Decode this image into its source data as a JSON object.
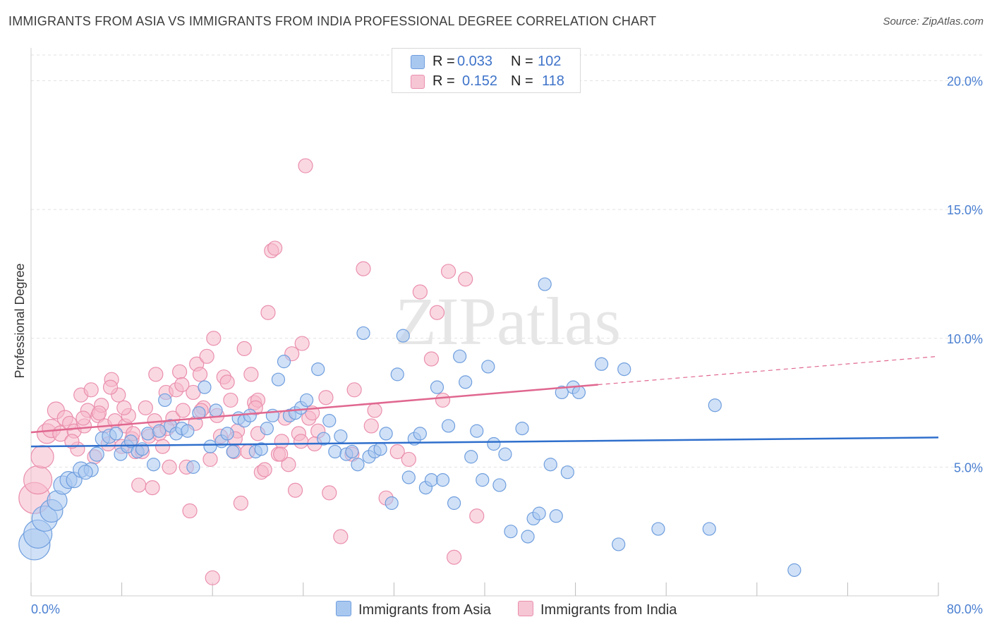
{
  "title": "IMMIGRANTS FROM ASIA VS IMMIGRANTS FROM INDIA PROFESSIONAL DEGREE CORRELATION CHART",
  "source": "Source: ZipAtlas.com",
  "watermark": "ZIPatlas",
  "legend": {
    "rows": [
      {
        "r_label": "R =",
        "r_value": "0.033",
        "n_label": "N =",
        "n_value": "102"
      },
      {
        "r_label": "R =",
        "r_value": "0.152",
        "n_label": "N =",
        "n_value": "118"
      }
    ]
  },
  "bottom_legend": {
    "asia": "Immigrants from Asia",
    "india": "Immigrants from India"
  },
  "colors": {
    "asia_fill": "#a9c8f0",
    "asia_stroke": "#6f9ede",
    "asia_line": "#2f6fcc",
    "india_fill": "#f6b8cb",
    "india_stroke": "#ea8fad",
    "india_line": "#e0678f",
    "tick_text": "#4a7fd1",
    "grid": "#e2e2e2"
  },
  "chart_data": {
    "type": "scatter",
    "title": "IMMIGRANTS FROM ASIA VS IMMIGRANTS FROM INDIA PROFESSIONAL DEGREE CORRELATION CHART",
    "xlabel": "",
    "ylabel": "Professional Degree",
    "xlim": [
      0,
      80
    ],
    "ylim": [
      0,
      21
    ],
    "x_tick_labels": [
      "0.0%",
      "80.0%"
    ],
    "y_ticks": [
      5,
      10,
      15,
      20
    ],
    "y_tick_labels": [
      "5.0%",
      "10.0%",
      "15.0%",
      "20.0%"
    ],
    "grid": true,
    "legend_position": "top-center",
    "series": [
      {
        "name": "Immigrants from Asia",
        "r": 0.033,
        "n": 102,
        "trend": {
          "x": [
            0,
            80
          ],
          "y": [
            5.8,
            6.15
          ]
        },
        "points": [
          [
            0.3,
            2.0
          ],
          [
            0.6,
            2.4
          ],
          [
            1.2,
            3.0
          ],
          [
            1.8,
            3.3
          ],
          [
            2.3,
            3.7
          ],
          [
            2.8,
            4.3
          ],
          [
            3.3,
            4.5
          ],
          [
            3.8,
            4.5
          ],
          [
            4.4,
            4.9
          ],
          [
            5.3,
            4.9
          ],
          [
            4.8,
            4.8
          ],
          [
            5.8,
            5.5
          ],
          [
            6.3,
            6.1
          ],
          [
            6.9,
            6.2
          ],
          [
            7.5,
            6.3
          ],
          [
            7.9,
            5.5
          ],
          [
            8.5,
            5.8
          ],
          [
            8.8,
            6.0
          ],
          [
            9.4,
            5.6
          ],
          [
            9.8,
            5.7
          ],
          [
            10.3,
            6.3
          ],
          [
            10.8,
            5.1
          ],
          [
            11.3,
            6.4
          ],
          [
            11.8,
            7.6
          ],
          [
            12.3,
            6.6
          ],
          [
            12.8,
            6.3
          ],
          [
            13.3,
            6.5
          ],
          [
            13.8,
            6.4
          ],
          [
            14.3,
            5.0
          ],
          [
            14.8,
            7.1
          ],
          [
            15.3,
            8.1
          ],
          [
            15.8,
            5.8
          ],
          [
            16.3,
            7.2
          ],
          [
            16.8,
            6.0
          ],
          [
            17.3,
            6.3
          ],
          [
            17.8,
            5.6
          ],
          [
            18.3,
            6.9
          ],
          [
            18.8,
            6.8
          ],
          [
            19.3,
            7.0
          ],
          [
            19.8,
            5.6
          ],
          [
            20.3,
            5.7
          ],
          [
            20.8,
            6.5
          ],
          [
            21.3,
            7.0
          ],
          [
            21.8,
            8.4
          ],
          [
            22.3,
            9.1
          ],
          [
            22.8,
            7.0
          ],
          [
            23.3,
            7.1
          ],
          [
            23.8,
            7.3
          ],
          [
            24.3,
            7.6
          ],
          [
            25.3,
            8.8
          ],
          [
            25.8,
            6.1
          ],
          [
            26.3,
            6.8
          ],
          [
            26.8,
            5.6
          ],
          [
            27.3,
            6.2
          ],
          [
            27.8,
            5.5
          ],
          [
            28.3,
            5.6
          ],
          [
            28.8,
            5.1
          ],
          [
            29.3,
            10.2
          ],
          [
            29.8,
            5.4
          ],
          [
            30.3,
            5.6
          ],
          [
            30.8,
            5.7
          ],
          [
            31.3,
            6.3
          ],
          [
            31.8,
            3.6
          ],
          [
            32.3,
            8.6
          ],
          [
            32.8,
            10.1
          ],
          [
            33.3,
            4.6
          ],
          [
            33.8,
            6.1
          ],
          [
            34.3,
            6.3
          ],
          [
            34.8,
            4.2
          ],
          [
            35.3,
            4.5
          ],
          [
            35.8,
            8.1
          ],
          [
            36.3,
            4.5
          ],
          [
            36.8,
            6.6
          ],
          [
            37.3,
            3.6
          ],
          [
            37.8,
            9.3
          ],
          [
            38.3,
            8.3
          ],
          [
            38.8,
            5.4
          ],
          [
            39.3,
            6.4
          ],
          [
            39.8,
            4.5
          ],
          [
            40.3,
            8.9
          ],
          [
            40.8,
            5.9
          ],
          [
            41.3,
            4.3
          ],
          [
            41.8,
            5.5
          ],
          [
            42.3,
            2.5
          ],
          [
            43.3,
            6.5
          ],
          [
            43.8,
            2.3
          ],
          [
            44.3,
            3.0
          ],
          [
            44.8,
            3.2
          ],
          [
            45.3,
            12.1
          ],
          [
            45.8,
            5.1
          ],
          [
            46.3,
            3.1
          ],
          [
            46.8,
            7.9
          ],
          [
            47.3,
            4.8
          ],
          [
            47.8,
            8.1
          ],
          [
            48.3,
            7.9
          ],
          [
            50.3,
            9.0
          ],
          [
            51.8,
            2.0
          ],
          [
            52.3,
            8.8
          ],
          [
            55.3,
            2.6
          ],
          [
            59.8,
            2.6
          ],
          [
            60.3,
            7.4
          ],
          [
            67.3,
            1.0
          ]
        ],
        "sizes": [
          22,
          20,
          18,
          16,
          14,
          13,
          12,
          11,
          11,
          10,
          10,
          10,
          10,
          10,
          9,
          9,
          9,
          9,
          9,
          9,
          9,
          9,
          9,
          9,
          9,
          9,
          9,
          9,
          9,
          9,
          9,
          9,
          9,
          9,
          9,
          9,
          9,
          9,
          9,
          9,
          9,
          9,
          9,
          9,
          9,
          9,
          9,
          9,
          9,
          9,
          9,
          9,
          9,
          9,
          9,
          9,
          9,
          9,
          9,
          9,
          9,
          9,
          9,
          9,
          9,
          9,
          9,
          9,
          9,
          9,
          9,
          9,
          9,
          9,
          9,
          9,
          9,
          9,
          9,
          9,
          9,
          9,
          9,
          9,
          9,
          9,
          9,
          9,
          9,
          9,
          9,
          9,
          9,
          9,
          9,
          9,
          9,
          9
        ]
      },
      {
        "name": "Immigrants from India",
        "r": 0.152,
        "n": 118,
        "trend": {
          "x": [
            0,
            50
          ],
          "y": [
            6.35,
            8.2
          ],
          "dashed_to": {
            "x": 80,
            "y": 9.3
          }
        },
        "points": [
          [
            0.3,
            3.8
          ],
          [
            0.6,
            4.5
          ],
          [
            1.0,
            5.4
          ],
          [
            1.4,
            6.3
          ],
          [
            1.8,
            6.5
          ],
          [
            2.2,
            7.2
          ],
          [
            2.6,
            6.3
          ],
          [
            3.0,
            6.9
          ],
          [
            3.4,
            6.7
          ],
          [
            3.8,
            6.4
          ],
          [
            4.1,
            5.7
          ],
          [
            4.4,
            7.8
          ],
          [
            4.7,
            6.6
          ],
          [
            5.0,
            7.2
          ],
          [
            5.3,
            8.0
          ],
          [
            5.6,
            5.4
          ],
          [
            5.9,
            7.0
          ],
          [
            6.2,
            7.4
          ],
          [
            6.5,
            6.6
          ],
          [
            6.8,
            5.9
          ],
          [
            7.1,
            8.4
          ],
          [
            7.4,
            6.8
          ],
          [
            7.7,
            7.8
          ],
          [
            8.0,
            5.8
          ],
          [
            8.3,
            6.6
          ],
          [
            8.6,
            7.0
          ],
          [
            8.9,
            6.1
          ],
          [
            9.2,
            5.6
          ],
          [
            9.5,
            4.3
          ],
          [
            9.8,
            5.6
          ],
          [
            10.1,
            7.3
          ],
          [
            10.4,
            6.2
          ],
          [
            10.7,
            4.2
          ],
          [
            11.0,
            8.6
          ],
          [
            11.3,
            6.3
          ],
          [
            11.6,
            5.8
          ],
          [
            11.9,
            7.9
          ],
          [
            12.2,
            5.0
          ],
          [
            12.5,
            6.9
          ],
          [
            12.8,
            8.0
          ],
          [
            13.1,
            8.7
          ],
          [
            13.4,
            7.2
          ],
          [
            13.7,
            5.0
          ],
          [
            14.0,
            3.3
          ],
          [
            14.3,
            7.9
          ],
          [
            14.6,
            9.0
          ],
          [
            14.9,
            8.6
          ],
          [
            15.2,
            7.3
          ],
          [
            15.5,
            9.3
          ],
          [
            15.8,
            5.3
          ],
          [
            16.1,
            10.0
          ],
          [
            16.4,
            7.0
          ],
          [
            16.7,
            6.2
          ],
          [
            17.0,
            8.5
          ],
          [
            17.3,
            8.3
          ],
          [
            17.6,
            7.6
          ],
          [
            17.9,
            5.6
          ],
          [
            18.2,
            6.4
          ],
          [
            18.5,
            3.6
          ],
          [
            18.8,
            9.6
          ],
          [
            19.1,
            5.6
          ],
          [
            19.4,
            8.6
          ],
          [
            19.7,
            7.5
          ],
          [
            20.0,
            6.3
          ],
          [
            20.3,
            4.8
          ],
          [
            20.6,
            4.9
          ],
          [
            20.9,
            11.0
          ],
          [
            21.2,
            13.4
          ],
          [
            21.5,
            13.5
          ],
          [
            21.8,
            5.5
          ],
          [
            22.1,
            6.0
          ],
          [
            22.4,
            6.9
          ],
          [
            22.7,
            5.1
          ],
          [
            23.0,
            9.4
          ],
          [
            23.3,
            4.1
          ],
          [
            23.6,
            6.3
          ],
          [
            23.9,
            9.8
          ],
          [
            24.2,
            16.7
          ],
          [
            24.5,
            6.9
          ],
          [
            24.8,
            7.1
          ],
          [
            25.3,
            6.4
          ],
          [
            26.3,
            4.0
          ],
          [
            27.3,
            2.3
          ],
          [
            28.3,
            5.5
          ],
          [
            29.3,
            12.7
          ],
          [
            30.3,
            7.2
          ],
          [
            31.3,
            3.8
          ],
          [
            32.3,
            5.6
          ],
          [
            33.3,
            5.3
          ],
          [
            34.3,
            11.8
          ],
          [
            35.3,
            9.2
          ],
          [
            35.8,
            11.0
          ],
          [
            36.3,
            7.6
          ],
          [
            36.8,
            12.6
          ],
          [
            37.3,
            1.5
          ],
          [
            38.3,
            12.3
          ],
          [
            39.3,
            3.1
          ],
          [
            13.3,
            8.2
          ],
          [
            9.0,
            6.3
          ],
          [
            12.0,
            6.5
          ],
          [
            15.0,
            7.2
          ],
          [
            18.0,
            6.1
          ],
          [
            20.0,
            7.6
          ],
          [
            22.0,
            5.5
          ],
          [
            25.0,
            5.9
          ],
          [
            30.0,
            6.6
          ],
          [
            16.0,
            0.7
          ],
          [
            6.0,
            7.1
          ],
          [
            7.0,
            8.1
          ],
          [
            8.2,
            7.3
          ],
          [
            3.6,
            6.0
          ],
          [
            4.6,
            6.9
          ],
          [
            10.9,
            6.8
          ],
          [
            14.5,
            6.7
          ],
          [
            19.8,
            7.3
          ],
          [
            23.8,
            6.0
          ],
          [
            26.0,
            7.7
          ],
          [
            28.5,
            8.0
          ]
        ],
        "sizes": [
          22,
          20,
          16,
          14,
          13,
          12,
          11,
          11,
          10,
          10,
          10,
          10,
          10,
          10,
          10,
          10,
          10,
          10,
          10,
          10,
          10,
          10,
          10,
          10,
          10,
          10,
          10,
          10,
          10,
          10,
          10,
          10,
          10,
          10,
          10,
          10,
          10,
          10,
          10,
          10,
          10,
          10,
          10,
          10,
          10,
          10,
          10,
          10,
          10,
          10,
          10,
          10,
          10,
          10,
          10,
          10,
          10,
          10,
          10,
          10,
          10,
          10,
          10,
          10,
          10,
          10,
          10,
          10,
          10,
          10,
          10,
          10,
          10,
          10,
          10,
          10,
          10,
          10,
          10,
          10,
          10,
          10,
          10,
          10,
          10,
          10,
          10,
          10,
          10,
          10,
          10,
          10,
          10,
          10,
          10,
          10,
          10,
          10,
          10,
          10,
          10,
          10,
          10,
          10,
          10,
          10,
          10,
          10,
          10,
          10,
          10,
          10,
          10,
          10,
          10,
          10,
          10,
          10
        ]
      }
    ]
  }
}
